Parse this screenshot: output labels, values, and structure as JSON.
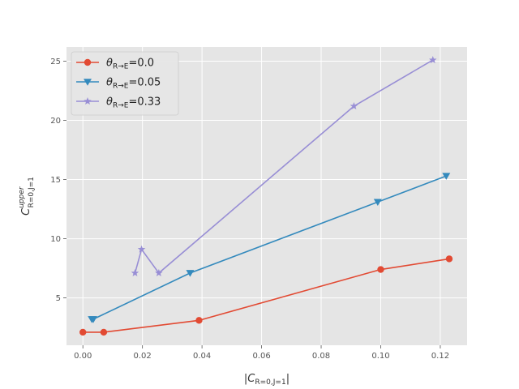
{
  "chart_data": {
    "type": "line",
    "title": "",
    "xlabel": "|C_{R=0,J=1}|",
    "ylabel": "C^{upper}_{R=0,J=1}",
    "xlim": [
      -0.0055,
      0.129
    ],
    "ylim": [
      1.0,
      26.2
    ],
    "xticks": [
      0.0,
      0.02,
      0.04,
      0.06,
      0.08,
      0.1,
      0.12
    ],
    "xtick_labels": [
      "0.00",
      "0.02",
      "0.04",
      "0.06",
      "0.08",
      "0.10",
      "0.12"
    ],
    "yticks": [
      5,
      10,
      15,
      20,
      25
    ],
    "ytick_labels": [
      "5",
      "10",
      "15",
      "20",
      "25"
    ],
    "grid": true,
    "legend_position": "top-left",
    "series": [
      {
        "name": "θ_{R→E}=0.0",
        "color": "#E24A33",
        "marker": "circle",
        "x": [
          0.0,
          0.007,
          0.039,
          0.1,
          0.123
        ],
        "y": [
          2.1,
          2.1,
          3.1,
          7.4,
          8.3
        ]
      },
      {
        "name": "θ_{R→E}=0.05",
        "color": "#348ABD",
        "marker": "triangle-down",
        "x": [
          0.003,
          0.0035,
          0.036,
          0.099,
          0.122
        ],
        "y": [
          3.2,
          3.2,
          7.1,
          13.1,
          15.3
        ]
      },
      {
        "name": "θ_{R→E}=0.33",
        "color": "#988ED5",
        "marker": "star",
        "x": [
          0.0175,
          0.0197,
          0.0255,
          0.091,
          0.1175
        ],
        "y": [
          7.1,
          9.1,
          7.1,
          21.2,
          25.1
        ]
      }
    ]
  }
}
